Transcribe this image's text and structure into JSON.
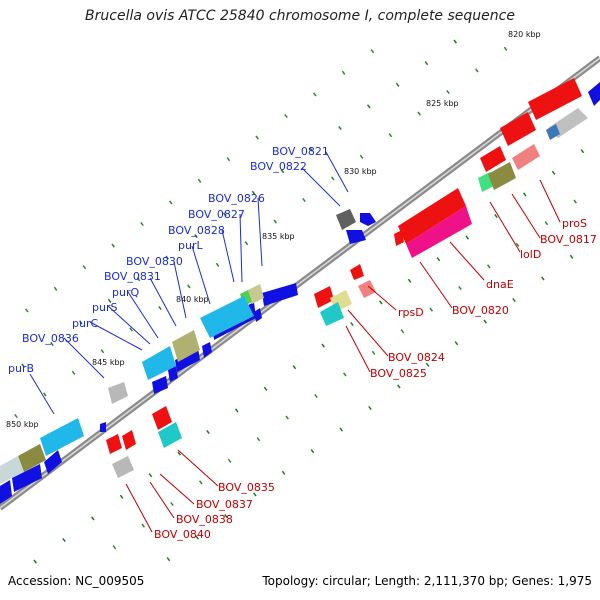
{
  "title": "Brucella ovis ATCC 25840 chromosome I, complete sequence",
  "footer": {
    "accession": "Accession: NC_009505",
    "summary": "Topology: circular; Length: 2,111,370 bp; Genes: 1,975"
  },
  "scale_labels": [
    "820 kbp",
    "825 kbp",
    "830 kbp",
    "835 kbp",
    "840 kbp",
    "845 kbp",
    "850 kbp"
  ],
  "upper_gene_labels": [
    "BOV_0821",
    "BOV_0822",
    "BOV_0826",
    "BOV_0827",
    "BOV_0828",
    "purL",
    "BOV_0830",
    "BOV_0831",
    "purQ",
    "purS",
    "purC",
    "BOV_0836",
    "purB"
  ],
  "lower_gene_labels": [
    "proS",
    "BOV_0817",
    "lolD",
    "dnaE",
    "BOV_0820",
    "rpsD",
    "BOV_0824",
    "BOV_0825",
    "BOV_0835",
    "BOV_0837",
    "BOV_0838",
    "BOV_0840"
  ],
  "colors": {
    "cog_blue": "#1010e0",
    "cog_cyan": "#20b8e8",
    "cog_red": "#ee1111",
    "cog_pink": "#ee1188",
    "cog_gray": "#a8a8a8",
    "cog_olive": "#8a8a40",
    "cog_khaki": "#c8c890",
    "backbone": "#888888",
    "tick_green": "#2a8a2a"
  }
}
